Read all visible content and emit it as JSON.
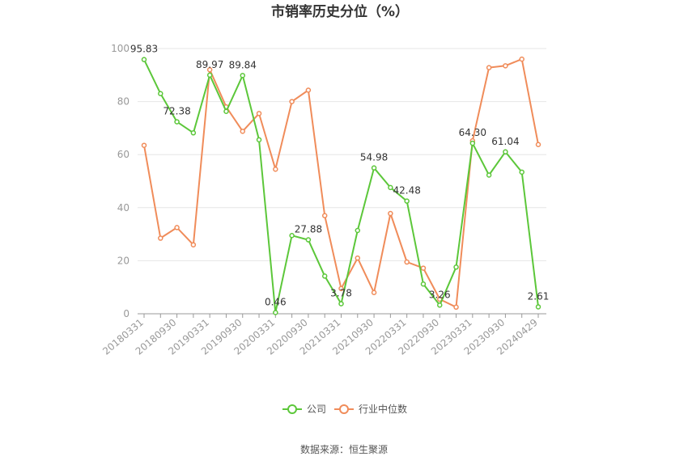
{
  "source_label": "数据来源：恒生聚源",
  "chart_data": {
    "type": "line",
    "title": "市销率历史分位（%）",
    "xlabel": "",
    "ylabel": "",
    "ylim": [
      0,
      100
    ],
    "yticks": [
      0,
      20,
      40,
      60,
      80,
      100
    ],
    "grid": true,
    "legend_position": "bottom-center",
    "x": [
      "20180331",
      "20180630",
      "20180930",
      "20181231",
      "20190331",
      "20190630",
      "20190930",
      "20191231",
      "20200331",
      "20200630",
      "20200930",
      "20201231",
      "20210331",
      "20210630",
      "20210930",
      "20211231",
      "20220331",
      "20220630",
      "20220930",
      "20221231",
      "20230331",
      "20230630",
      "20230930",
      "20231231",
      "20240429"
    ],
    "xtick_labels": [
      "20180331",
      "20180930",
      "20190331",
      "20190930",
      "20200331",
      "20200930",
      "20210331",
      "20210930",
      "20220331",
      "20220930",
      "20230331",
      "20230930",
      "20240429"
    ],
    "series": [
      {
        "name": "公司",
        "color": "#5cc73a",
        "values": [
          95.83,
          83.0,
          72.38,
          68.2,
          89.97,
          76.3,
          89.84,
          65.6,
          0.46,
          29.5,
          27.88,
          14.2,
          3.78,
          31.4,
          54.98,
          47.6,
          42.48,
          11.2,
          3.26,
          17.6,
          64.3,
          52.3,
          61.04,
          53.4,
          2.61
        ],
        "labels": [
          "95.83",
          "",
          "72.38",
          "",
          "89.97",
          "",
          "89.84",
          "",
          "0.46",
          "",
          "27.88",
          "",
          "3.78",
          "",
          "54.98",
          "",
          "42.48",
          "",
          "3.26",
          "",
          "64.30",
          "",
          "61.04",
          "",
          "2.61"
        ]
      },
      {
        "name": "行业中位数",
        "color": "#f08c5a",
        "values": [
          63.5,
          28.5,
          32.5,
          26.0,
          92.0,
          78.0,
          68.8,
          75.5,
          54.5,
          80.0,
          84.3,
          37.0,
          9.5,
          21.0,
          8.0,
          37.8,
          19.5,
          17.2,
          5.5,
          2.5,
          65.2,
          92.8,
          93.5,
          96.0,
          63.8
        ]
      }
    ]
  }
}
